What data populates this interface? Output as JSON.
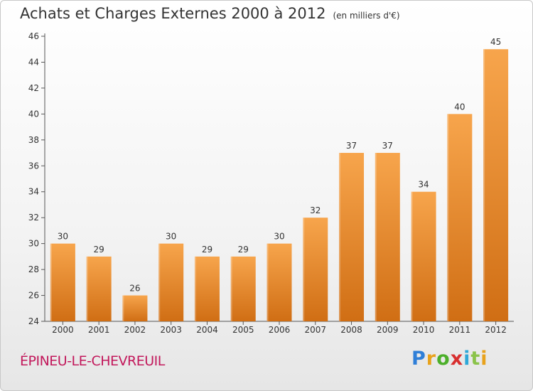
{
  "header": {
    "title": "Achats et Charges Externes 2000 à 2012",
    "unit": "(en milliers d'€)"
  },
  "footer": {
    "place": "ÉPINEU-LE-CHEVREUIL",
    "logo_letters": [
      "P",
      "r",
      "o",
      "x",
      "i",
      "t",
      "i"
    ],
    "logo_colors": [
      "#2f7fd8",
      "#e8a21c",
      "#4caf2a",
      "#d82f2f",
      "#2fa8d8",
      "#8bc34a",
      "#e8a21c"
    ]
  },
  "chart_data": {
    "type": "bar",
    "title": "Achats et Charges Externes 2000 à 2012",
    "categories": [
      "2000",
      "2001",
      "2002",
      "2003",
      "2004",
      "2005",
      "2006",
      "2007",
      "2008",
      "2009",
      "2010",
      "2011",
      "2012"
    ],
    "values": [
      30,
      29,
      26,
      30,
      29,
      29,
      30,
      32,
      37,
      37,
      34,
      40,
      45
    ],
    "ylim": [
      24,
      46
    ],
    "yticks": [
      24,
      26,
      28,
      30,
      32,
      34,
      36,
      38,
      40,
      42,
      44,
      46
    ],
    "grid": false,
    "bar_color_top": "#f7a54c",
    "bar_color_bottom": "#d06e14",
    "axis_color": "#555555"
  }
}
